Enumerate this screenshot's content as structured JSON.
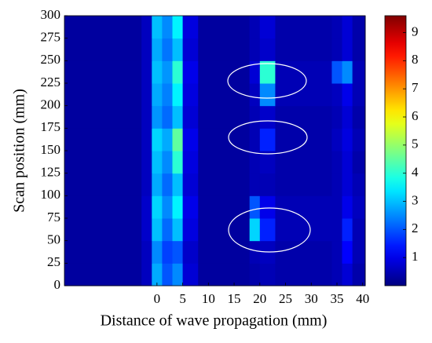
{
  "chart_data": {
    "type": "heatmap",
    "xlabel": "Distance of wave propagation (mm)",
    "ylabel": "Scan position (mm)",
    "xlim": [
      -18,
      40.5
    ],
    "ylim": [
      0,
      300
    ],
    "xticks": [
      0,
      5,
      10,
      15,
      20,
      25,
      30,
      35,
      40
    ],
    "yticks": [
      0,
      25,
      50,
      75,
      100,
      125,
      150,
      175,
      200,
      225,
      250,
      275,
      300
    ],
    "x_edges": [
      -18,
      -3,
      -1,
      1,
      3,
      5,
      8,
      18,
      20,
      23,
      34,
      36,
      38,
      40.5
    ],
    "y_edges": [
      0,
      25,
      50,
      75,
      100,
      125,
      150,
      175,
      200,
      225,
      250,
      275,
      300
    ],
    "z": [
      [
        0.3,
        0.6,
        2.8,
        2.0,
        2.5,
        0.8,
        0.3,
        0.4,
        0.5,
        0.4,
        0.5,
        0.8,
        0.4
      ],
      [
        0.3,
        0.6,
        2.5,
        1.8,
        2.0,
        0.7,
        0.3,
        0.5,
        0.6,
        0.4,
        0.5,
        1.2,
        0.5
      ],
      [
        0.3,
        0.7,
        3.0,
        2.2,
        3.0,
        0.9,
        0.3,
        3.2,
        1.5,
        0.5,
        0.5,
        1.5,
        0.5
      ],
      [
        0.3,
        0.7,
        3.2,
        2.5,
        3.5,
        1.0,
        0.3,
        2.0,
        1.0,
        0.5,
        0.5,
        1.0,
        0.6
      ],
      [
        0.3,
        0.6,
        2.8,
        2.2,
        3.0,
        0.8,
        0.3,
        0.5,
        0.5,
        0.4,
        0.5,
        0.8,
        0.5
      ],
      [
        0.3,
        0.6,
        3.0,
        2.5,
        4.0,
        0.9,
        0.3,
        0.5,
        0.6,
        0.4,
        0.5,
        0.8,
        0.4
      ],
      [
        0.3,
        0.6,
        3.2,
        2.8,
        4.5,
        1.0,
        0.3,
        0.5,
        1.5,
        0.4,
        0.6,
        0.9,
        0.5
      ],
      [
        0.3,
        0.6,
        2.6,
        2.2,
        3.0,
        0.8,
        0.3,
        0.5,
        0.7,
        0.4,
        0.5,
        0.8,
        0.4
      ],
      [
        0.3,
        0.6,
        2.8,
        2.4,
        3.5,
        0.9,
        0.3,
        0.6,
        2.5,
        0.5,
        0.6,
        1.0,
        0.5
      ],
      [
        0.3,
        0.6,
        3.0,
        2.6,
        4.0,
        1.0,
        0.3,
        0.8,
        4.0,
        0.5,
        2.0,
        2.5,
        0.5
      ],
      [
        0.3,
        0.6,
        2.8,
        2.3,
        3.0,
        0.8,
        0.3,
        0.5,
        0.7,
        0.4,
        0.5,
        0.8,
        0.4
      ],
      [
        0.3,
        0.6,
        3.0,
        2.5,
        3.5,
        0.9,
        0.3,
        0.5,
        0.8,
        0.4,
        0.5,
        0.8,
        0.4
      ]
    ],
    "colormap": "jet",
    "zlim": [
      0,
      9.6
    ],
    "colorbar_ticks": [
      1,
      2,
      3,
      4,
      5,
      6,
      7,
      8,
      9
    ]
  }
}
